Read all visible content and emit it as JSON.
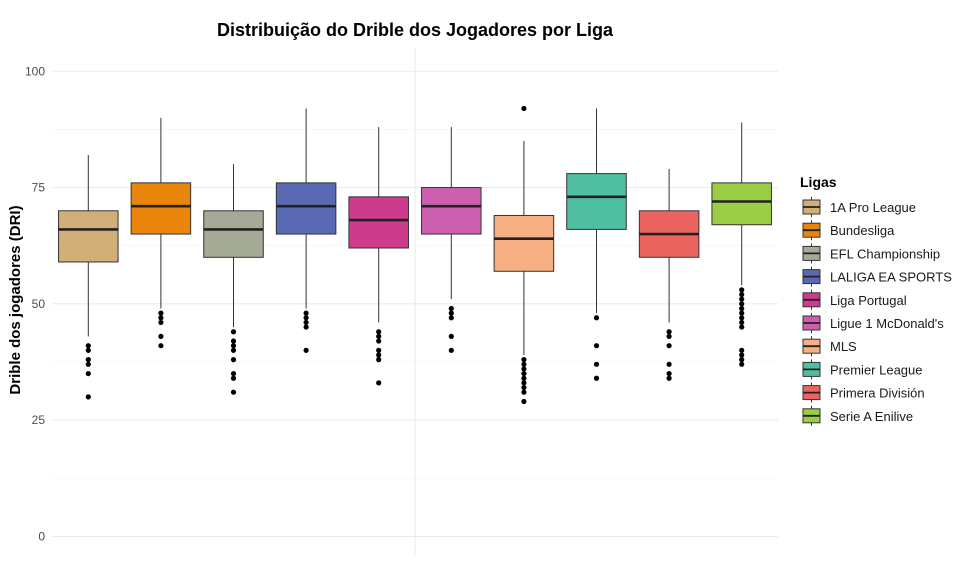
{
  "chart_data": {
    "type": "boxplot",
    "title": "Distribuição do Drible dos Jogadores por Liga",
    "xlabel": "",
    "ylabel": "Drible dos jogadores (DRI)",
    "ylim": [
      -4,
      105
    ],
    "yticks": [
      0,
      25,
      50,
      75,
      100
    ],
    "grid": true,
    "legend_title": "Ligas",
    "legend_position": "right",
    "series": [
      {
        "name": "1A Pro League",
        "color": "#D2AF78",
        "q1": 59,
        "median": 66,
        "q3": 70,
        "whisker_low": 43,
        "whisker_high": 82,
        "outliers": [
          41,
          40,
          38,
          37,
          35,
          30
        ]
      },
      {
        "name": "Bundesliga",
        "color": "#E8850A",
        "q1": 65,
        "median": 71,
        "q3": 76,
        "whisker_low": 49,
        "whisker_high": 90,
        "outliers": [
          48,
          47,
          46,
          43,
          41
        ]
      },
      {
        "name": "EFL Championship",
        "color": "#A5AA96",
        "q1": 60,
        "median": 66,
        "q3": 70,
        "whisker_low": 45,
        "whisker_high": 80,
        "outliers": [
          44,
          42,
          41,
          40,
          38,
          35,
          34,
          31
        ]
      },
      {
        "name": "LALIGA EA SPORTS",
        "color": "#5A69B4",
        "q1": 65,
        "median": 71,
        "q3": 76,
        "whisker_low": 49,
        "whisker_high": 92,
        "outliers": [
          48,
          47,
          46,
          45,
          40
        ]
      },
      {
        "name": "Liga Portugal",
        "color": "#CD3C8C",
        "q1": 62,
        "median": 68,
        "q3": 73,
        "whisker_low": 46,
        "whisker_high": 88,
        "outliers": [
          44,
          43,
          42,
          40,
          39,
          38,
          33
        ]
      },
      {
        "name": "Ligue 1 McDonald's",
        "color": "#CD5FAF",
        "q1": 65,
        "median": 71,
        "q3": 75,
        "whisker_low": 51,
        "whisker_high": 88,
        "outliers": [
          49,
          48,
          47,
          43,
          40
        ]
      },
      {
        "name": "MLS",
        "color": "#F5AF82",
        "q1": 57,
        "median": 64,
        "q3": 69,
        "whisker_low": 39,
        "whisker_high": 85,
        "outliers": [
          92,
          38,
          37,
          36,
          35,
          34,
          33,
          32,
          31,
          29
        ]
      },
      {
        "name": "Premier League",
        "color": "#50BEA0",
        "q1": 66,
        "median": 73,
        "q3": 78,
        "whisker_low": 48,
        "whisker_high": 92,
        "outliers": [
          47,
          41,
          37,
          34
        ]
      },
      {
        "name": "Primera División",
        "color": "#EB645F",
        "q1": 60,
        "median": 65,
        "q3": 70,
        "whisker_low": 46,
        "whisker_high": 79,
        "outliers": [
          44,
          43,
          41,
          37,
          35,
          34
        ]
      },
      {
        "name": "Serie A Enilive",
        "color": "#9BCD46",
        "q1": 67,
        "median": 72,
        "q3": 76,
        "whisker_low": 54,
        "whisker_high": 89,
        "outliers": [
          53,
          52,
          51,
          50,
          49,
          48,
          47,
          46,
          45,
          40,
          39,
          38,
          37
        ]
      }
    ]
  }
}
